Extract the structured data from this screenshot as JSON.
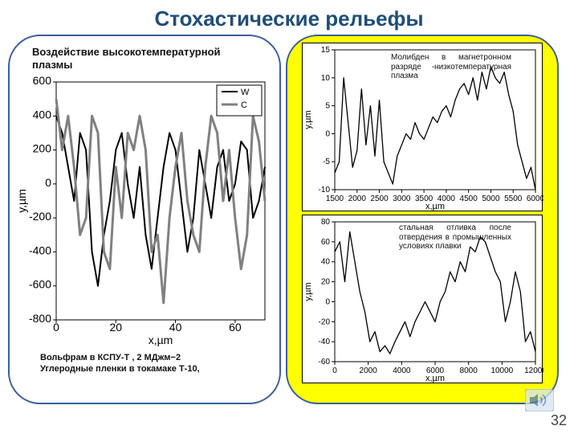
{
  "title": "Стохастические рельефы",
  "page_number": "32",
  "left": {
    "subtitle": "Воздействие высокотемпературной плазмы",
    "caption": "Вольфрам в КСПУ-Т ,  2 МДжм−2\nУглеродные пленки в токамаке Т-10,",
    "chart": {
      "type": "line",
      "background_color": "#ffffff",
      "legend": {
        "items": [
          "W",
          "C"
        ],
        "colors": [
          "#000000",
          "#808080"
        ]
      },
      "xlabel": "x,µm",
      "ylabel": "y,µm",
      "xlim": [
        0,
        70
      ],
      "xtick_step": 20,
      "ylim": [
        -800,
        600
      ],
      "ytick_step": 200,
      "series": [
        {
          "name": "W",
          "color": "#000000",
          "width": 2,
          "x": [
            0,
            2,
            4,
            6,
            8,
            10,
            12,
            14,
            16,
            18,
            20,
            22,
            24,
            26,
            28,
            30,
            32,
            34,
            36,
            38,
            40,
            42,
            44,
            46,
            48,
            50,
            52,
            54,
            56,
            58,
            60,
            62,
            64,
            66,
            68,
            70
          ],
          "y": [
            400,
            300,
            100,
            -100,
            300,
            200,
            -400,
            -600,
            -300,
            -100,
            200,
            300,
            0,
            -200,
            100,
            -300,
            -500,
            -200,
            100,
            300,
            200,
            -100,
            -400,
            -200,
            200,
            0,
            -200,
            100,
            200,
            -100,
            0,
            250,
            200,
            -200,
            -100,
            100
          ]
        },
        {
          "name": "C",
          "color": "#808080",
          "width": 3,
          "x": [
            0,
            2,
            4,
            6,
            8,
            10,
            12,
            14,
            16,
            18,
            20,
            22,
            24,
            26,
            28,
            30,
            32,
            34,
            36,
            38,
            40,
            42,
            44,
            46,
            48,
            50,
            52,
            54,
            56,
            58,
            60,
            62,
            64,
            66,
            68,
            70
          ],
          "y": [
            500,
            200,
            400,
            100,
            -300,
            -200,
            400,
            300,
            -400,
            -500,
            100,
            -200,
            300,
            200,
            400,
            200,
            -400,
            -300,
            -700,
            -200,
            100,
            300,
            -100,
            -300,
            -400,
            100,
            400,
            300,
            -100,
            200,
            -200,
            -500,
            -300,
            400,
            250,
            -100
          ]
        }
      ]
    }
  },
  "right": {
    "top_chart": {
      "type": "line",
      "background_color": "#ffffff",
      "annotation": "Молибден  в магнетронном разряде -низкотемпературная плазма",
      "xlabel": "x,µm",
      "ylabel": "y,µm",
      "xlim": [
        1500,
        6000
      ],
      "xtick_step": 500,
      "ylim": [
        -10,
        15
      ],
      "ytick_step": 5,
      "series": [
        {
          "color": "#000000",
          "width": 1.3,
          "x": [
            1500,
            1600,
            1700,
            1800,
            1900,
            2000,
            2100,
            2200,
            2300,
            2400,
            2500,
            2600,
            2700,
            2800,
            2900,
            3000,
            3100,
            3200,
            3300,
            3400,
            3500,
            3600,
            3700,
            3800,
            3900,
            4000,
            4100,
            4200,
            4300,
            4400,
            4500,
            4600,
            4700,
            4800,
            4900,
            5000,
            5100,
            5200,
            5300,
            5400,
            5500,
            5600,
            5700,
            5800,
            5900,
            6000
          ],
          "y": [
            -7,
            -5,
            10,
            2,
            -6,
            -3,
            8,
            -2,
            5,
            -4,
            6,
            -5,
            -7,
            -9,
            -4,
            -2,
            0,
            -1,
            2,
            0,
            -1,
            1,
            3,
            2,
            4,
            5,
            3,
            6,
            8,
            9,
            7,
            10,
            6,
            11,
            8,
            12,
            10,
            9,
            11,
            7,
            4,
            -2,
            -5,
            -8,
            -6,
            -10
          ]
        }
      ]
    },
    "bottom_chart": {
      "type": "line",
      "background_color": "#ffffff",
      "annotation": "стальная отливка  после отвердения в промышленных условиях плавки",
      "xlabel": "x,µm",
      "ylabel": "y,µm",
      "xlim": [
        0,
        12000
      ],
      "xtick_step": 2000,
      "ylim": [
        -60,
        80
      ],
      "ytick_step": 20,
      "series": [
        {
          "color": "#000000",
          "width": 1.3,
          "x": [
            0,
            300,
            600,
            900,
            1200,
            1500,
            1800,
            2100,
            2400,
            2700,
            3000,
            3300,
            3600,
            3900,
            4200,
            4500,
            4800,
            5100,
            5400,
            5700,
            6000,
            6300,
            6600,
            6900,
            7200,
            7500,
            7800,
            8100,
            8400,
            8700,
            9000,
            9300,
            9600,
            9900,
            10200,
            10500,
            10800,
            11100,
            11400,
            11700,
            12000
          ],
          "y": [
            50,
            60,
            20,
            70,
            40,
            10,
            -10,
            -40,
            -30,
            -50,
            -44,
            -52,
            -40,
            -30,
            -20,
            -35,
            -20,
            -10,
            0,
            -10,
            -20,
            0,
            10,
            30,
            20,
            40,
            30,
            55,
            50,
            65,
            60,
            45,
            30,
            20,
            -20,
            0,
            30,
            10,
            -40,
            -30,
            -50
          ]
        }
      ]
    }
  }
}
